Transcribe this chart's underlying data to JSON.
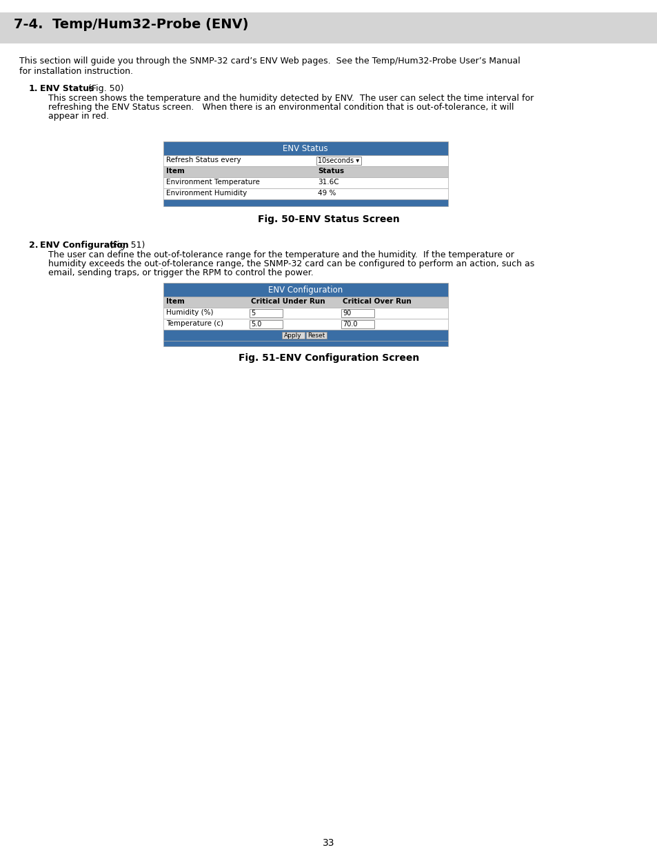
{
  "title": "7-4.  Temp/Hum32-Probe (ENV)",
  "title_bg": "#d4d4d4",
  "page_bg": "#ffffff",
  "section1_label": "1.",
  "section1_title": "ENV Status",
  "section1_fig": " (Fig. 50)",
  "section1_desc_lines": [
    "This screen shows the temperature and the humidity detected by ENV.  The user can select the time interval for",
    "refreshing the ENV Status screen.   When there is an environmental condition that is out-of-tolerance, it will",
    "appear in red."
  ],
  "table1_title": "ENV Status",
  "table1_header_bg": "#3a6ea5",
  "table1_header_text": "#ffffff",
  "table1_row1_label": "Refresh Status every",
  "table1_row1_value": "10seconds ▾",
  "table1_subheader_label": "Item",
  "table1_subheader_value": "Status",
  "table1_subheader_bg": "#c8c8c8",
  "table1_row2_label": "Environment Temperature",
  "table1_row2_value": "31.6C",
  "table1_row3_label": "Environment Humidity",
  "table1_row3_value": "49 %",
  "table1_footer_bg": "#3a6ea5",
  "fig1_caption": "Fig. 50-ENV Status Screen",
  "section2_label": "2.",
  "section2_title": "ENV Configuration",
  "section2_fig": " (Fig. 51)",
  "section2_desc_lines": [
    "The user can define the out-of-tolerance range for the temperature and the humidity.  If the temperature or",
    "humidity exceeds the out-of-tolerance range, the SNMP-32 card can be configured to perform an action, such as",
    "email, sending traps, or trigger the RPM to control the power."
  ],
  "table2_title": "ENV Configuration",
  "table2_header_bg": "#3a6ea5",
  "table2_header_text": "#ffffff",
  "table2_col1": "Item",
  "table2_col2": "Critical Under Run",
  "table2_col3": "Critical Over Run",
  "table2_subheader_bg": "#c8c8c8",
  "table2_row1_label": "Humidity (%)",
  "table2_row1_val2": "5",
  "table2_row1_val3": "90",
  "table2_row2_label": "Temperature (c)",
  "table2_row2_val2": "5.0",
  "table2_row2_val3": "70.0",
  "table2_footer_bg": "#3a6ea5",
  "table2_button1": "Apply",
  "table2_button2": "Reset",
  "fig2_caption": "Fig. 51-ENV Configuration Screen",
  "page_number": "33",
  "row_bg_white": "#ffffff",
  "table_border": "#aaaaaa",
  "text_color": "#000000",
  "input_bg": "#ffffff",
  "input_border": "#888888",
  "body_line1": "This section will guide you through the SNMP-32 card’s ENV Web pages.  See the Temp/Hum32-Probe User’s Manual",
  "body_line2": "for installation instruction."
}
